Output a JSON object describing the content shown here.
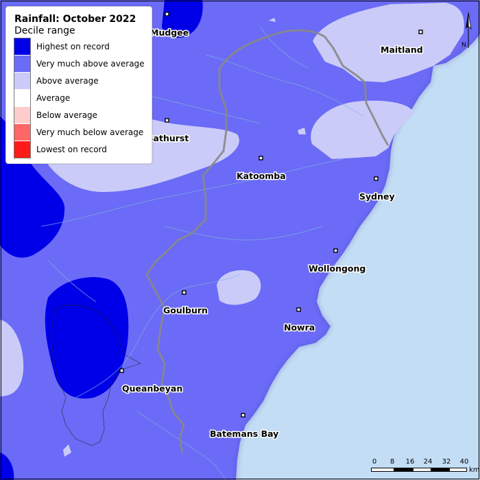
{
  "map": {
    "title": "Rainfall: October 2022",
    "subtitle": "Decile range",
    "legend": [
      {
        "label": "Highest on record",
        "color": "#0000e8"
      },
      {
        "label": "Very much above average",
        "color": "#6b6bf7"
      },
      {
        "label": "Above average",
        "color": "#cbcbf9"
      },
      {
        "label": "Average",
        "color": "#ffffff"
      },
      {
        "label": "Below average",
        "color": "#ffcccc"
      },
      {
        "label": "Very much below average",
        "color": "#ff6666"
      },
      {
        "label": "Lowest on record",
        "color": "#ff1a1a"
      }
    ],
    "places": [
      {
        "name": "Mudgee"
      },
      {
        "name": "Maitland"
      },
      {
        "name": "Bathurst"
      },
      {
        "name": "Katoomba"
      },
      {
        "name": "Sydney"
      },
      {
        "name": "Wollongong"
      },
      {
        "name": "Goulburn"
      },
      {
        "name": "Nowra"
      },
      {
        "name": "Queanbeyan"
      },
      {
        "name": "Batemans Bay"
      }
    ],
    "scale": {
      "ticks": [
        "0",
        "8",
        "16",
        "24",
        "32",
        "40"
      ],
      "unit": "km"
    },
    "north_label": "N",
    "ocean_color": "#c3ddf5"
  }
}
